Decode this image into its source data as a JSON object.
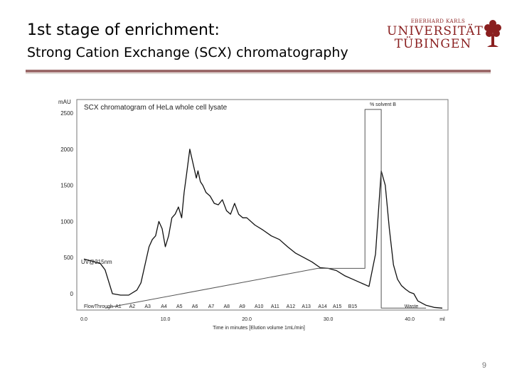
{
  "slide": {
    "title": "1st stage of enrichment:",
    "subtitle": "Strong Cation Exchange (SCX) chromatography",
    "page_number": "9"
  },
  "logo": {
    "line1": "EBERHARD KARLS",
    "line2": "UNIVERSITÄT",
    "line3": "TÜBINGEN",
    "icon": "tree-icon",
    "color": "#8a1f1f"
  },
  "colors": {
    "divider": "#9c6b6b",
    "trace": "#111111",
    "gradient": "#555555",
    "plot_border": "#777777"
  },
  "chart_data": {
    "type": "line",
    "title": "SCX chromatogram of HeLa whole cell lysate",
    "ylabel": "mAU",
    "xlabel": "Time in minutes [Elution volume 1mL/min]",
    "y_ticks": [
      "2500",
      "2000",
      "1500",
      "1000",
      "500",
      "0"
    ],
    "x_ticks": [
      "0.0",
      "10.0",
      "20.0",
      "30.0",
      "40.0",
      "ml"
    ],
    "ylim": [
      -200,
      2550
    ],
    "xlim": [
      0,
      44
    ],
    "trace_label": "UV@215nm",
    "gradient_label": "% solvent B",
    "fractions": [
      "FlowThrough",
      "A1",
      "A2",
      "A3",
      "A4",
      "A5",
      "A6",
      "A7",
      "A8",
      "A9",
      "A10",
      "A11",
      "A12",
      "A13",
      "A14",
      "A15",
      "B15",
      "Waste"
    ],
    "series": [
      {
        "name": "UV@215nm",
        "x": [
          0.0,
          1.0,
          2.0,
          2.6,
          3.5,
          4.5,
          5.5,
          6.5,
          7.0,
          7.5,
          8.0,
          8.4,
          8.8,
          9.2,
          9.6,
          10.0,
          10.4,
          10.8,
          11.2,
          11.6,
          12.0,
          12.3,
          12.6,
          13.0,
          13.4,
          13.8,
          14.0,
          14.3,
          14.6,
          15.0,
          15.5,
          16.0,
          16.5,
          17.0,
          17.5,
          18.0,
          18.5,
          19.0,
          19.5,
          20.0,
          21.0,
          22.0,
          23.0,
          24.0,
          25.0,
          26.0,
          27.0,
          28.0,
          29.0,
          30.0,
          31.0,
          32.0,
          33.0,
          34.0,
          35.0,
          35.8,
          36.5,
          37.0,
          37.5,
          38.0,
          38.5,
          39.0,
          39.5,
          40.0,
          40.5,
          41.0,
          42.0,
          43.0,
          44.0
        ],
        "y": [
          480,
          450,
          420,
          330,
          0,
          -20,
          -20,
          50,
          150,
          400,
          650,
          750,
          800,
          1000,
          900,
          650,
          800,
          1050,
          1100,
          1200,
          1050,
          1400,
          1650,
          2000,
          1800,
          1600,
          1700,
          1550,
          1500,
          1400,
          1350,
          1250,
          1230,
          1300,
          1150,
          1100,
          1250,
          1100,
          1050,
          1050,
          950,
          880,
          800,
          750,
          650,
          560,
          500,
          440,
          360,
          350,
          320,
          250,
          200,
          150,
          100,
          550,
          1700,
          1500,
          900,
          400,
          200,
          110,
          60,
          20,
          0,
          -100,
          -160,
          -190,
          -200
        ]
      },
      {
        "name": "% solvent B",
        "x": [
          2.6,
          28.7,
          28.7,
          34.5,
          34.5,
          36.5,
          36.5,
          42.0
        ],
        "y": [
          -200,
          350,
          350,
          350,
          2550,
          2550,
          -200,
          -200
        ]
      }
    ]
  }
}
